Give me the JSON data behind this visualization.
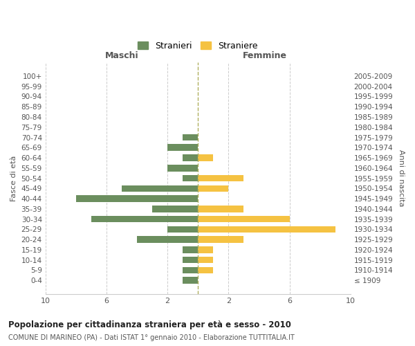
{
  "age_groups": [
    "100+",
    "95-99",
    "90-94",
    "85-89",
    "80-84",
    "75-79",
    "70-74",
    "65-69",
    "60-64",
    "55-59",
    "50-54",
    "45-49",
    "40-44",
    "35-39",
    "30-34",
    "25-29",
    "20-24",
    "15-19",
    "10-14",
    "5-9",
    "0-4"
  ],
  "birth_years": [
    "≤ 1909",
    "1910-1914",
    "1915-1919",
    "1920-1924",
    "1925-1929",
    "1930-1934",
    "1935-1939",
    "1940-1944",
    "1945-1949",
    "1950-1954",
    "1955-1959",
    "1960-1964",
    "1965-1969",
    "1970-1974",
    "1975-1979",
    "1980-1984",
    "1985-1989",
    "1990-1994",
    "1995-1999",
    "2000-2004",
    "2005-2009"
  ],
  "maschi": [
    0,
    0,
    0,
    0,
    0,
    0,
    1,
    2,
    1,
    2,
    1,
    5,
    8,
    3,
    7,
    2,
    4,
    1,
    1,
    1,
    1
  ],
  "femmine": [
    0,
    0,
    0,
    0,
    0,
    0,
    0,
    0,
    1,
    0,
    3,
    2,
    0,
    3,
    6,
    9,
    3,
    1,
    1,
    1,
    0
  ],
  "color_maschi": "#6b8e5e",
  "color_femmine": "#f5c242",
  "title": "Popolazione per cittadinanza straniera per età e sesso - 2010",
  "subtitle": "COMUNE DI MARINEO (PA) - Dati ISTAT 1° gennaio 2010 - Elaborazione TUTTITALIA.IT",
  "ylabel_left": "Fasce di età",
  "ylabel_right": "Anni di nascita",
  "xlabel_left": "Maschi",
  "xlabel_right": "Femmine",
  "legend_maschi": "Stranieri",
  "legend_femmine": "Straniere",
  "xlim": 10,
  "background_color": "#ffffff",
  "grid_color": "#cccccc"
}
